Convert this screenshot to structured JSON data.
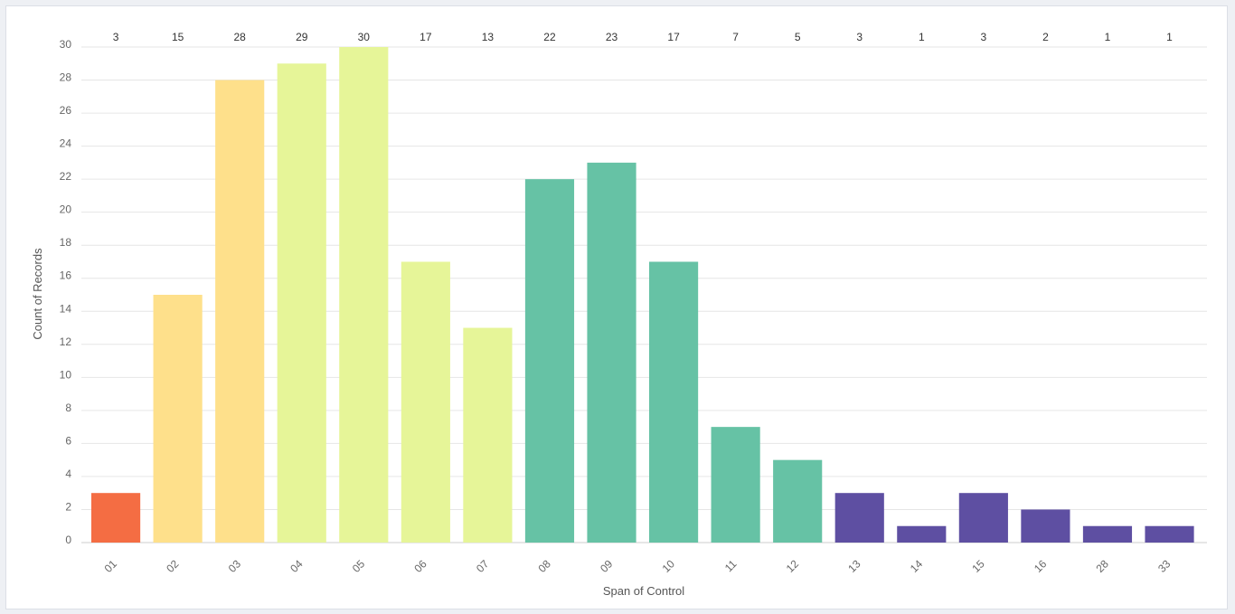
{
  "chart_data": {
    "type": "bar",
    "title": "",
    "xlabel": "Span of Control",
    "ylabel": "Count of Records",
    "ylim": [
      0,
      30
    ],
    "yticks": [
      "0",
      "2",
      "4",
      "6",
      "8",
      "10",
      "12",
      "14",
      "16",
      "18",
      "20",
      "22",
      "24",
      "26",
      "28",
      "30"
    ],
    "categories": [
      "01",
      "02",
      "03",
      "04",
      "05",
      "06",
      "07",
      "08",
      "09",
      "10",
      "11",
      "12",
      "13",
      "14",
      "15",
      "16",
      "28",
      "33"
    ],
    "values": [
      3,
      15,
      28,
      29,
      30,
      17,
      13,
      22,
      23,
      17,
      7,
      5,
      3,
      1,
      3,
      2,
      1,
      1
    ],
    "colors": [
      "#f46d43",
      "#fee08b",
      "#fee08b",
      "#e6f598",
      "#e6f598",
      "#e6f598",
      "#e6f598",
      "#66c2a5",
      "#66c2a5",
      "#66c2a5",
      "#66c2a5",
      "#66c2a5",
      "#5e4fa2",
      "#5e4fa2",
      "#5e4fa2",
      "#5e4fa2",
      "#5e4fa2",
      "#5e4fa2"
    ],
    "gridlines": true
  }
}
